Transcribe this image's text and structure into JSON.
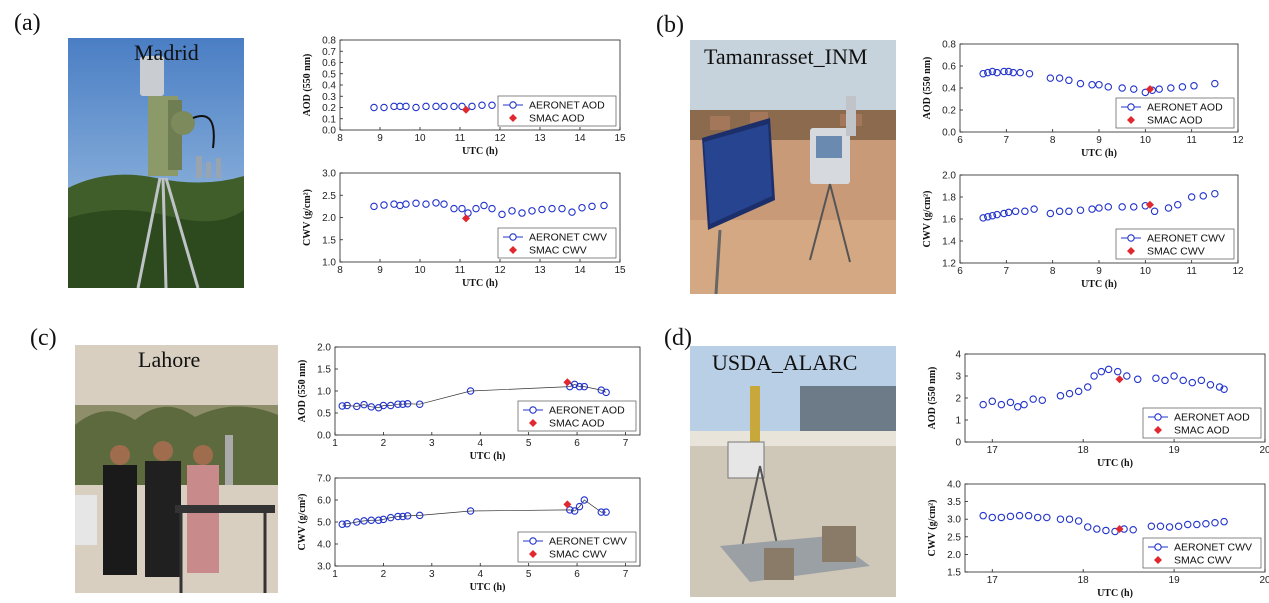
{
  "panels": [
    {
      "label": "(a)",
      "site": "Madrid"
    },
    {
      "label": "(b)",
      "site": "Tamanrasset_INM"
    },
    {
      "label": "(c)",
      "site": "Lahore"
    },
    {
      "label": "(d)",
      "site": "USDA_ALARC"
    }
  ],
  "colors": {
    "aeronet": "#2233cc",
    "smac": "#e0282e",
    "axis": "#222222"
  },
  "chart_data": [
    {
      "type": "scatter",
      "panel": "(a)",
      "xlabel": "UTC (h)",
      "ylabel": "AOD (550 nm)",
      "xlim": [
        8,
        15
      ],
      "ylim": [
        0,
        0.8
      ],
      "xticks": [
        "8",
        "9",
        "10",
        "11",
        "12",
        "13",
        "14",
        "15"
      ],
      "yticks": [
        "0.0",
        "0.1",
        "0.2",
        "0.3",
        "0.4",
        "0.5",
        "0.6",
        "0.7",
        "0.8"
      ],
      "legend": [
        "AERONET AOD",
        "SMAC AOD"
      ],
      "series": [
        {
          "name": "AERONET AOD",
          "x": [
            8.85,
            9.1,
            9.35,
            9.5,
            9.65,
            9.9,
            10.15,
            10.4,
            10.6,
            10.85,
            11.05,
            11.3,
            11.55,
            11.8,
            12.05,
            12.3,
            12.55,
            12.8,
            13.05,
            13.3,
            13.55,
            13.8,
            14.05,
            14.3,
            14.6
          ],
          "y": [
            0.2,
            0.2,
            0.21,
            0.21,
            0.21,
            0.2,
            0.21,
            0.21,
            0.21,
            0.21,
            0.21,
            0.21,
            0.22,
            0.22,
            0.21,
            0.21,
            0.21,
            0.21,
            0.21,
            0.21,
            0.22,
            0.21,
            0.22,
            0.22,
            0.22
          ]
        },
        {
          "name": "SMAC AOD",
          "x": [
            11.15
          ],
          "y": [
            0.18
          ]
        }
      ]
    },
    {
      "type": "scatter",
      "panel": "(a)",
      "xlabel": "UTC (h)",
      "ylabel": "CWV (g/cm²)",
      "xlim": [
        8,
        15
      ],
      "ylim": [
        1.0,
        3.0
      ],
      "xticks": [
        "8",
        "9",
        "10",
        "11",
        "12",
        "13",
        "14",
        "15"
      ],
      "yticks": [
        "1.0",
        "1.5",
        "2.0",
        "2.5",
        "3.0"
      ],
      "legend": [
        "AERONET CWV",
        "SMAC CWV"
      ],
      "series": [
        {
          "name": "AERONET CWV",
          "x": [
            8.85,
            9.1,
            9.35,
            9.5,
            9.65,
            9.9,
            10.15,
            10.4,
            10.6,
            10.85,
            11.05,
            11.2,
            11.4,
            11.6,
            11.8,
            12.05,
            12.3,
            12.55,
            12.8,
            13.05,
            13.3,
            13.55,
            13.8,
            14.05,
            14.3,
            14.6
          ],
          "y": [
            2.25,
            2.28,
            2.3,
            2.27,
            2.3,
            2.32,
            2.3,
            2.33,
            2.3,
            2.2,
            2.2,
            2.1,
            2.2,
            2.27,
            2.2,
            2.07,
            2.15,
            2.1,
            2.15,
            2.18,
            2.2,
            2.2,
            2.12,
            2.22,
            2.25,
            2.27
          ]
        },
        {
          "name": "SMAC CWV",
          "x": [
            11.15
          ],
          "y": [
            1.98
          ]
        }
      ]
    },
    {
      "type": "scatter",
      "panel": "(b)",
      "xlabel": "UTC (h)",
      "ylabel": "AOD (550 nm)",
      "xlim": [
        6,
        12
      ],
      "ylim": [
        0,
        0.8
      ],
      "xticks": [
        "6",
        "7",
        "8",
        "9",
        "10",
        "11",
        "12"
      ],
      "yticks": [
        "0.0",
        "0.2",
        "0.4",
        "0.6",
        "0.8"
      ],
      "legend": [
        "AERONET AOD",
        "SMAC AOD"
      ],
      "series": [
        {
          "name": "AERONET AOD",
          "x": [
            6.5,
            6.6,
            6.7,
            6.8,
            6.95,
            7.05,
            7.15,
            7.3,
            7.5,
            7.95,
            8.15,
            8.35,
            8.6,
            8.85,
            9.0,
            9.2,
            9.5,
            9.75,
            10.0,
            10.15,
            10.3,
            10.55,
            10.8,
            11.05,
            11.5
          ],
          "y": [
            0.53,
            0.54,
            0.55,
            0.54,
            0.55,
            0.55,
            0.54,
            0.54,
            0.53,
            0.49,
            0.49,
            0.47,
            0.44,
            0.43,
            0.43,
            0.41,
            0.4,
            0.39,
            0.36,
            0.38,
            0.39,
            0.4,
            0.41,
            0.42,
            0.44
          ]
        },
        {
          "name": "SMAC AOD",
          "x": [
            10.1
          ],
          "y": [
            0.39
          ]
        }
      ]
    },
    {
      "type": "scatter",
      "panel": "(b)",
      "xlabel": "UTC (h)",
      "ylabel": "CWV (g/cm²)",
      "xlim": [
        6,
        12
      ],
      "ylim": [
        1.2,
        2.0
      ],
      "xticks": [
        "6",
        "7",
        "8",
        "9",
        "10",
        "11",
        "12"
      ],
      "yticks": [
        "1.2",
        "1.4",
        "1.6",
        "1.8",
        "2.0"
      ],
      "legend": [
        "AERONET CWV",
        "SMAC CWV"
      ],
      "series": [
        {
          "name": "AERONET CWV",
          "x": [
            6.5,
            6.6,
            6.7,
            6.8,
            6.95,
            7.05,
            7.2,
            7.4,
            7.6,
            7.95,
            8.15,
            8.35,
            8.6,
            8.85,
            9.0,
            9.2,
            9.5,
            9.75,
            10.0,
            10.2,
            10.5,
            10.7,
            11.0,
            11.25,
            11.5
          ],
          "y": [
            1.61,
            1.62,
            1.63,
            1.64,
            1.65,
            1.66,
            1.67,
            1.67,
            1.69,
            1.65,
            1.67,
            1.67,
            1.68,
            1.69,
            1.7,
            1.71,
            1.71,
            1.71,
            1.72,
            1.67,
            1.7,
            1.73,
            1.8,
            1.81,
            1.83
          ]
        },
        {
          "name": "SMAC CWV",
          "x": [
            10.1
          ],
          "y": [
            1.73
          ]
        }
      ]
    },
    {
      "type": "line",
      "panel": "(c)",
      "xlabel": "UTC (h)",
      "ylabel": "AOD (550 nm)",
      "xlim": [
        1,
        7.3
      ],
      "ylim": [
        0,
        2.0
      ],
      "xticks": [
        "1",
        "2",
        "3",
        "4",
        "5",
        "6",
        "7"
      ],
      "yticks": [
        "0.0",
        "0.5",
        "1.0",
        "1.5",
        "2.0"
      ],
      "legend": [
        "AERONET AOD",
        "SMAC AOD"
      ],
      "series": [
        {
          "name": "AERONET AOD",
          "x": [
            1.15,
            1.25,
            1.45,
            1.6,
            1.75,
            1.9,
            2.0,
            2.15,
            2.3,
            2.4,
            2.5,
            2.75,
            3.8,
            5.85,
            5.95,
            6.05,
            6.15,
            6.5,
            6.6
          ],
          "y": [
            0.66,
            0.67,
            0.65,
            0.69,
            0.64,
            0.62,
            0.67,
            0.67,
            0.7,
            0.7,
            0.71,
            0.7,
            1.0,
            1.1,
            1.15,
            1.1,
            1.1,
            1.02,
            0.97
          ]
        },
        {
          "name": "SMAC AOD",
          "x": [
            5.8
          ],
          "y": [
            1.2
          ]
        }
      ]
    },
    {
      "type": "line",
      "panel": "(c)",
      "xlabel": "UTC (h)",
      "ylabel": "CWV (g/cm²)",
      "xlim": [
        1,
        7.3
      ],
      "ylim": [
        3.0,
        7.0
      ],
      "xticks": [
        "1",
        "2",
        "3",
        "4",
        "5",
        "6",
        "7"
      ],
      "yticks": [
        "3.0",
        "4.0",
        "5.0",
        "6.0",
        "7.0"
      ],
      "legend": [
        "AERONET CWV",
        "SMAC CWV"
      ],
      "series": [
        {
          "name": "AERONET CWV",
          "x": [
            1.15,
            1.25,
            1.45,
            1.6,
            1.75,
            1.9,
            2.0,
            2.15,
            2.3,
            2.4,
            2.5,
            2.75,
            3.8,
            5.85,
            5.95,
            6.05,
            6.15,
            6.5,
            6.6
          ],
          "y": [
            4.9,
            4.92,
            5.0,
            5.05,
            5.08,
            5.08,
            5.12,
            5.2,
            5.25,
            5.25,
            5.28,
            5.3,
            5.5,
            5.55,
            5.5,
            5.7,
            6.0,
            5.45,
            5.45
          ]
        },
        {
          "name": "SMAC CWV",
          "x": [
            5.8
          ],
          "y": [
            5.8
          ]
        }
      ]
    },
    {
      "type": "scatter",
      "panel": "(d)",
      "xlabel": "UTC (h)",
      "ylabel": "AOD (550 nm)",
      "xlim": [
        16.7,
        20
      ],
      "ylim": [
        0,
        4
      ],
      "xticks": [
        "17",
        "18",
        "19",
        "20"
      ],
      "yticks": [
        "0",
        "1",
        "2",
        "3",
        "4"
      ],
      "legend": [
        "AERONET AOD",
        "SMAC AOD"
      ],
      "series": [
        {
          "name": "AERONET AOD",
          "x": [
            16.9,
            17.0,
            17.1,
            17.2,
            17.28,
            17.35,
            17.45,
            17.55,
            17.75,
            17.85,
            17.95,
            18.05,
            18.12,
            18.2,
            18.28,
            18.38,
            18.48,
            18.6,
            18.8,
            18.9,
            19.0,
            19.1,
            19.2,
            19.3,
            19.4,
            19.5,
            19.55
          ],
          "y": [
            1.7,
            1.85,
            1.7,
            1.8,
            1.6,
            1.7,
            1.95,
            1.9,
            2.1,
            2.2,
            2.3,
            2.5,
            3.0,
            3.2,
            3.3,
            3.2,
            3.0,
            2.85,
            2.9,
            2.8,
            3.0,
            2.8,
            2.7,
            2.8,
            2.6,
            2.5,
            2.4
          ]
        },
        {
          "name": "SMAC AOD",
          "x": [
            18.4
          ],
          "y": [
            2.85
          ]
        }
      ]
    },
    {
      "type": "scatter",
      "panel": "(d)",
      "xlabel": "UTC (h)",
      "ylabel": "CWV (g/cm²)",
      "xlim": [
        16.7,
        20
      ],
      "ylim": [
        1.5,
        4.0
      ],
      "xticks": [
        "17",
        "18",
        "19",
        "20"
      ],
      "yticks": [
        "1.5",
        "2.0",
        "2.5",
        "3.0",
        "3.5",
        "4.0"
      ],
      "legend": [
        "AERONET CWV",
        "SMAC CWV"
      ],
      "series": [
        {
          "name": "AERONET CWV",
          "x": [
            16.9,
            17.0,
            17.1,
            17.2,
            17.3,
            17.4,
            17.5,
            17.6,
            17.75,
            17.85,
            17.95,
            18.05,
            18.15,
            18.25,
            18.35,
            18.45,
            18.55,
            18.75,
            18.85,
            18.95,
            19.05,
            19.15,
            19.25,
            19.35,
            19.45,
            19.55
          ],
          "y": [
            3.1,
            3.05,
            3.05,
            3.08,
            3.1,
            3.1,
            3.05,
            3.05,
            3.0,
            3.0,
            2.95,
            2.78,
            2.72,
            2.68,
            2.65,
            2.72,
            2.7,
            2.8,
            2.8,
            2.78,
            2.8,
            2.85,
            2.85,
            2.87,
            2.9,
            2.93
          ]
        },
        {
          "name": "SMAC CWV",
          "x": [
            18.4
          ],
          "y": [
            2.72
          ]
        }
      ]
    }
  ]
}
